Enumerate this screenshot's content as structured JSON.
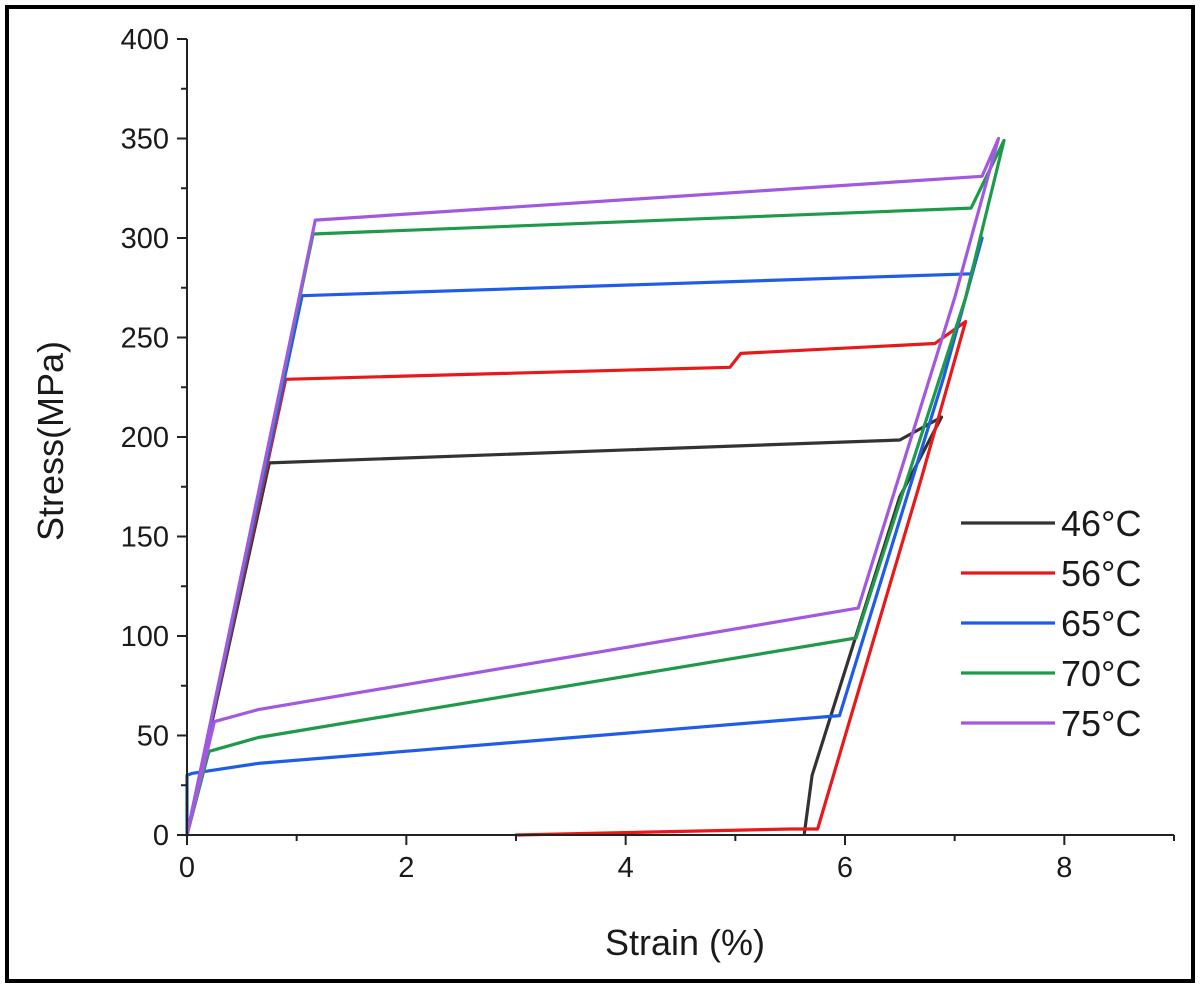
{
  "chart_data": {
    "type": "line",
    "title": "",
    "xlabel": "Strain (%)",
    "ylabel": "Stress(MPa)",
    "xlim": [
      0,
      9
    ],
    "ylim": [
      0,
      400
    ],
    "xticks": [
      0,
      2,
      4,
      6,
      8
    ],
    "yticks": [
      0,
      50,
      100,
      150,
      200,
      250,
      300,
      350,
      400
    ],
    "grid": false,
    "legend_position": "right",
    "series": [
      {
        "name": "46°C",
        "color": "#333333",
        "x": [
          0,
          0.75,
          6.5,
          6.88,
          6.5,
          5.7,
          5.63
        ],
        "y": [
          0,
          187,
          198.5,
          210,
          170,
          30,
          1
        ]
      },
      {
        "name": "56°C",
        "color": "#e8191b",
        "x": [
          0,
          0.9,
          4.95,
          5.05,
          6.82,
          7.1,
          6.7,
          5.75,
          5.5,
          3.0
        ],
        "y": [
          0,
          229,
          235,
          242,
          247,
          258,
          180,
          3,
          3,
          0
        ]
      },
      {
        "name": "65°C",
        "color": "#1f5de8",
        "x": [
          0,
          1.05,
          7.15,
          7.25,
          6.9,
          5.95,
          0.65,
          0.05,
          0,
          0
        ],
        "y": [
          0,
          271,
          282,
          300,
          230,
          60,
          36,
          31,
          30,
          0
        ]
      },
      {
        "name": "70°C",
        "color": "#1e9a4a",
        "x": [
          0,
          1.15,
          7.15,
          7.45,
          7.1,
          6.1,
          0.65,
          0.2,
          0
        ],
        "y": [
          0,
          302,
          315,
          349,
          270,
          99,
          49,
          42,
          0
        ]
      },
      {
        "name": "75°C",
        "color": "#a259e0",
        "x": [
          0,
          1.17,
          7.25,
          7.4,
          7.0,
          6.12,
          0.65,
          0.25,
          0
        ],
        "y": [
          0,
          309,
          331,
          350,
          270,
          114,
          63,
          57,
          0
        ]
      }
    ]
  }
}
